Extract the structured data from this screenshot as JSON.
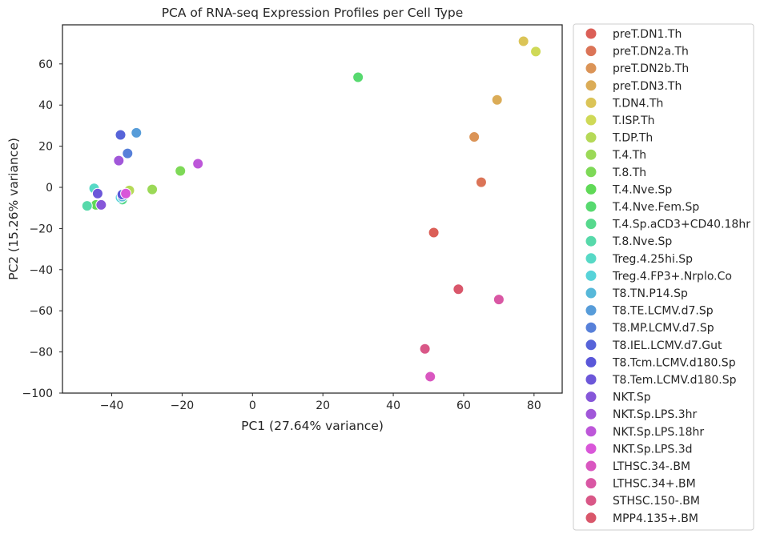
{
  "chart_data": {
    "type": "scatter",
    "title": "PCA of RNA-seq Expression Profiles per Cell Type",
    "xlabel": "PC1 (27.64% variance)",
    "ylabel": "PC2 (15.26% variance)",
    "xlim": [
      -54,
      88
    ],
    "ylim": [
      -100,
      79
    ],
    "xticks": [
      -40,
      -20,
      0,
      20,
      40,
      60,
      80
    ],
    "yticks": [
      -100,
      -80,
      -60,
      -40,
      -20,
      0,
      20,
      40,
      60
    ],
    "xtick_labels": [
      "−40",
      "−20",
      "0",
      "20",
      "40",
      "60",
      "80"
    ],
    "ytick_labels": [
      "−100",
      "−80",
      "−60",
      "−40",
      "−20",
      "0",
      "20",
      "40",
      "60"
    ],
    "grid": false,
    "legend_position": "outside-right",
    "series": [
      {
        "name": "preT.DN1.Th",
        "color": "#db5f57",
        "points": [
          [
            51.5,
            -22.0
          ]
        ]
      },
      {
        "name": "preT.DN2a.Th",
        "color": "#db7457",
        "points": [
          [
            65.0,
            2.5
          ]
        ]
      },
      {
        "name": "preT.DN2b.Th",
        "color": "#db9457",
        "points": [
          [
            63.0,
            24.5
          ]
        ]
      },
      {
        "name": "preT.DN3.Th",
        "color": "#dbac57",
        "points": [
          [
            69.5,
            42.5
          ]
        ]
      },
      {
        "name": "T.DN4.Th",
        "color": "#dbc457",
        "points": [
          [
            77.0,
            71.0
          ]
        ]
      },
      {
        "name": "T.ISP.Th",
        "color": "#cfd957",
        "points": [
          [
            80.5,
            66.0
          ]
        ]
      },
      {
        "name": "T.DP.Th",
        "color": "#b5d957",
        "points": [
          [
            -35.0,
            -1.5
          ]
        ]
      },
      {
        "name": "T.4.Th",
        "color": "#9bd957",
        "points": [
          [
            -28.5,
            -1.0
          ]
        ]
      },
      {
        "name": "T.8.Th",
        "color": "#7ed957",
        "points": [
          [
            -20.5,
            8.0
          ]
        ]
      },
      {
        "name": "T.4.Nve.Sp",
        "color": "#60d957",
        "points": [
          [
            -44.5,
            -8.5
          ]
        ]
      },
      {
        "name": "T.4.Nve.Fem.Sp",
        "color": "#57d96f",
        "points": [
          [
            30.0,
            53.5
          ]
        ]
      },
      {
        "name": "T.4.Sp.aCD3+CD40.18hr",
        "color": "#57d98d",
        "points": [
          [
            -37.0,
            -6.0
          ]
        ]
      },
      {
        "name": "T.8.Nve.Sp",
        "color": "#57d9aa",
        "points": [
          [
            -47.0,
            -9.0
          ]
        ]
      },
      {
        "name": "Treg.4.25hi.Sp",
        "color": "#57d9c6",
        "points": [
          [
            -45.0,
            -0.5
          ]
        ]
      },
      {
        "name": "Treg.4.FP3+.Nrplo.Co",
        "color": "#57d3d9",
        "points": [
          [
            -37.5,
            -5.0
          ]
        ]
      },
      {
        "name": "T8.TN.P14.Sp",
        "color": "#57b8d9",
        "points": [
          [
            -37.0,
            -4.5
          ]
        ]
      },
      {
        "name": "T8.TE.LCMV.d7.Sp",
        "color": "#579cd9",
        "points": [
          [
            -33.0,
            26.5
          ]
        ]
      },
      {
        "name": "T8.MP.LCMV.d7.Sp",
        "color": "#5780d9",
        "points": [
          [
            -35.5,
            16.5
          ]
        ]
      },
      {
        "name": "T8.IEL.LCMV.d7.Gut",
        "color": "#5764d9",
        "points": [
          [
            -37.5,
            25.5
          ]
        ]
      },
      {
        "name": "T8.Tcm.LCMV.d180.Sp",
        "color": "#5a57d9",
        "points": [
          [
            -37.0,
            -3.5
          ]
        ]
      },
      {
        "name": "T8.Tem.LCMV.d180.Sp",
        "color": "#6c57d9",
        "points": [
          [
            -44.0,
            -3.0
          ]
        ]
      },
      {
        "name": "NKT.Sp",
        "color": "#8657d9",
        "points": [
          [
            -43.0,
            -8.5
          ]
        ]
      },
      {
        "name": "NKT.Sp.LPS.3hr",
        "color": "#a157d9",
        "points": [
          [
            -38.0,
            13.0
          ]
        ]
      },
      {
        "name": "NKT.Sp.LPS.18hr",
        "color": "#bd57d9",
        "points": [
          [
            -15.5,
            11.5
          ]
        ]
      },
      {
        "name": "NKT.Sp.LPS.3d",
        "color": "#d957d9",
        "points": [
          [
            -36.0,
            -3.0
          ]
        ]
      },
      {
        "name": "LTHSC.34-.BM",
        "color": "#d957c0",
        "points": [
          [
            50.5,
            -92.0
          ]
        ]
      },
      {
        "name": "LTHSC.34+.BM",
        "color": "#d957a4",
        "points": [
          [
            70.0,
            -54.5
          ]
        ]
      },
      {
        "name": "STHSC.150-.BM",
        "color": "#d95787",
        "points": [
          [
            49.0,
            -78.5
          ]
        ]
      },
      {
        "name": "MPP4.135+.BM",
        "color": "#d9576b",
        "points": [
          [
            58.5,
            -49.5
          ]
        ]
      }
    ]
  }
}
